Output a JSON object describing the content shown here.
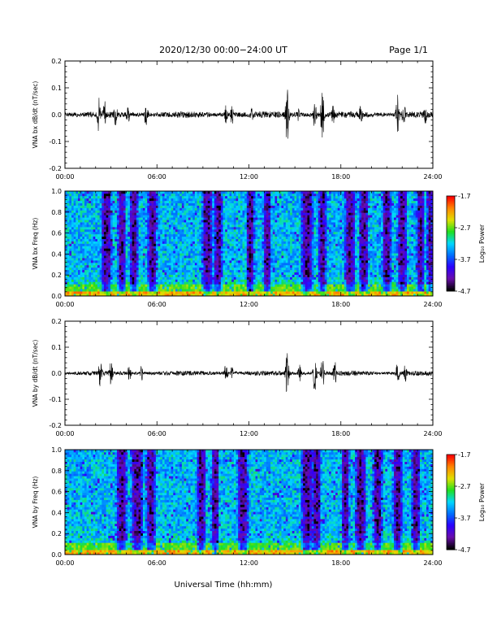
{
  "header": {
    "title": "2020/12/30  00:00−24:00 UT",
    "page": "Page 1/1"
  },
  "colors": {
    "trace": "#000000",
    "colormap": [
      "#000000",
      "#6a0dad",
      "#2a00ff",
      "#0070ff",
      "#00d8ff",
      "#20e020",
      "#e0e000",
      "#ff8800",
      "#ff0000"
    ]
  },
  "chart_data": [
    {
      "type": "line",
      "name": "bx-waveform",
      "ylabel": "VNA bx dB/dt (nT/sec)",
      "ylim": [
        -0.2,
        0.2
      ],
      "yticks": [
        "-0.2",
        "-0.1",
        "0.0",
        "0.1",
        "0.2"
      ],
      "xlim": [
        0,
        24
      ],
      "xticks": [
        "00:00",
        "06:00",
        "12:00",
        "18:00",
        "24:00"
      ],
      "baseline_amplitude": 0.012,
      "bursts": [
        {
          "t": 2.2,
          "amp": 0.065
        },
        {
          "t": 2.6,
          "amp": 0.05
        },
        {
          "t": 3.3,
          "amp": 0.045
        },
        {
          "t": 4.1,
          "amp": 0.04
        },
        {
          "t": 5.3,
          "amp": 0.05
        },
        {
          "t": 10.5,
          "amp": 0.035
        },
        {
          "t": 10.9,
          "amp": 0.045
        },
        {
          "t": 12.2,
          "amp": 0.03
        },
        {
          "t": 14.5,
          "amp": 0.115
        },
        {
          "t": 15.2,
          "amp": 0.03
        },
        {
          "t": 16.3,
          "amp": 0.06
        },
        {
          "t": 16.8,
          "amp": 0.11
        },
        {
          "t": 17.5,
          "amp": 0.04
        },
        {
          "t": 19.3,
          "amp": 0.04
        },
        {
          "t": 21.7,
          "amp": 0.075
        },
        {
          "t": 22.1,
          "amp": 0.05
        },
        {
          "t": 23.5,
          "amp": 0.035
        }
      ]
    },
    {
      "type": "heatmap",
      "name": "bx-spectrogram",
      "ylabel": "VNA bx Freq (Hz)",
      "ylim": [
        0.0,
        1.0
      ],
      "yticks": [
        "0.0",
        "0.2",
        "0.4",
        "0.6",
        "0.8",
        "1.0"
      ],
      "xlim": [
        0,
        24
      ],
      "xticks": [
        "00:00",
        "06:00",
        "12:00",
        "18:00",
        "24:00"
      ],
      "colorbar": {
        "label": "Log₁₀ Power",
        "range": [
          -4.7,
          -1.7
        ],
        "ticks": [
          "-1.7",
          "-2.7",
          "-3.7",
          "-4.7"
        ]
      },
      "dark_bands": [
        {
          "t": 2.7,
          "w": 0.4
        },
        {
          "t": 3.7,
          "w": 0.3
        },
        {
          "t": 4.5,
          "w": 0.3
        },
        {
          "t": 5.7,
          "w": 0.35
        },
        {
          "t": 9.3,
          "w": 0.4
        },
        {
          "t": 10.0,
          "w": 0.3
        },
        {
          "t": 12.1,
          "w": 0.3
        },
        {
          "t": 13.2,
          "w": 0.3
        },
        {
          "t": 15.8,
          "w": 0.45
        },
        {
          "t": 16.8,
          "w": 0.3
        },
        {
          "t": 18.6,
          "w": 0.4
        },
        {
          "t": 19.5,
          "w": 0.35
        },
        {
          "t": 21.0,
          "w": 0.35
        },
        {
          "t": 22.0,
          "w": 0.35
        },
        {
          "t": 23.2,
          "w": 0.3
        },
        {
          "t": 23.8,
          "w": 0.2
        }
      ]
    },
    {
      "type": "line",
      "name": "by-waveform",
      "ylabel": "VNA by dB/dt (nT/sec)",
      "ylim": [
        -0.2,
        0.2
      ],
      "yticks": [
        "-0.2",
        "-0.1",
        "0.0",
        "0.1",
        "0.2"
      ],
      "xlim": [
        0,
        24
      ],
      "xticks": [
        "00:00",
        "06:00",
        "12:00",
        "18:00",
        "24:00"
      ],
      "baseline_amplitude": 0.009,
      "bursts": [
        {
          "t": 2.3,
          "amp": 0.055
        },
        {
          "t": 3.0,
          "amp": 0.045
        },
        {
          "t": 4.2,
          "amp": 0.035
        },
        {
          "t": 5.0,
          "amp": 0.03
        },
        {
          "t": 10.5,
          "amp": 0.04
        },
        {
          "t": 10.9,
          "amp": 0.025
        },
        {
          "t": 14.5,
          "amp": 0.1
        },
        {
          "t": 15.3,
          "amp": 0.035
        },
        {
          "t": 16.3,
          "amp": 0.075
        },
        {
          "t": 16.8,
          "amp": 0.065
        },
        {
          "t": 17.6,
          "amp": 0.05
        },
        {
          "t": 21.7,
          "amp": 0.04
        },
        {
          "t": 22.2,
          "amp": 0.035
        }
      ]
    },
    {
      "type": "heatmap",
      "name": "by-spectrogram",
      "ylabel": "VNA by Freq (Hz)",
      "ylim": [
        0.0,
        1.0
      ],
      "yticks": [
        "0.0",
        "0.2",
        "0.4",
        "0.6",
        "0.8",
        "1.0"
      ],
      "xlim": [
        0,
        24
      ],
      "xticks": [
        "00:00",
        "06:00",
        "12:00",
        "18:00",
        "24:00"
      ],
      "colorbar": {
        "label": "Log₁₀ Power",
        "range": [
          -4.7,
          -1.7
        ],
        "ticks": [
          "-1.7",
          "-2.7",
          "-3.7",
          "-4.7"
        ]
      },
      "dark_bands": [
        {
          "t": 3.7,
          "w": 0.4
        },
        {
          "t": 4.7,
          "w": 0.45
        },
        {
          "t": 5.6,
          "w": 0.35
        },
        {
          "t": 8.9,
          "w": 0.35
        },
        {
          "t": 9.8,
          "w": 0.3
        },
        {
          "t": 11.6,
          "w": 0.4
        },
        {
          "t": 15.8,
          "w": 0.45
        },
        {
          "t": 16.4,
          "w": 0.35
        },
        {
          "t": 18.3,
          "w": 0.3
        },
        {
          "t": 19.3,
          "w": 0.4
        },
        {
          "t": 20.4,
          "w": 0.35
        },
        {
          "t": 21.7,
          "w": 0.35
        },
        {
          "t": 22.9,
          "w": 0.3
        }
      ]
    }
  ],
  "footer": {
    "xlabel": "Universal Time (hh:mm)"
  }
}
